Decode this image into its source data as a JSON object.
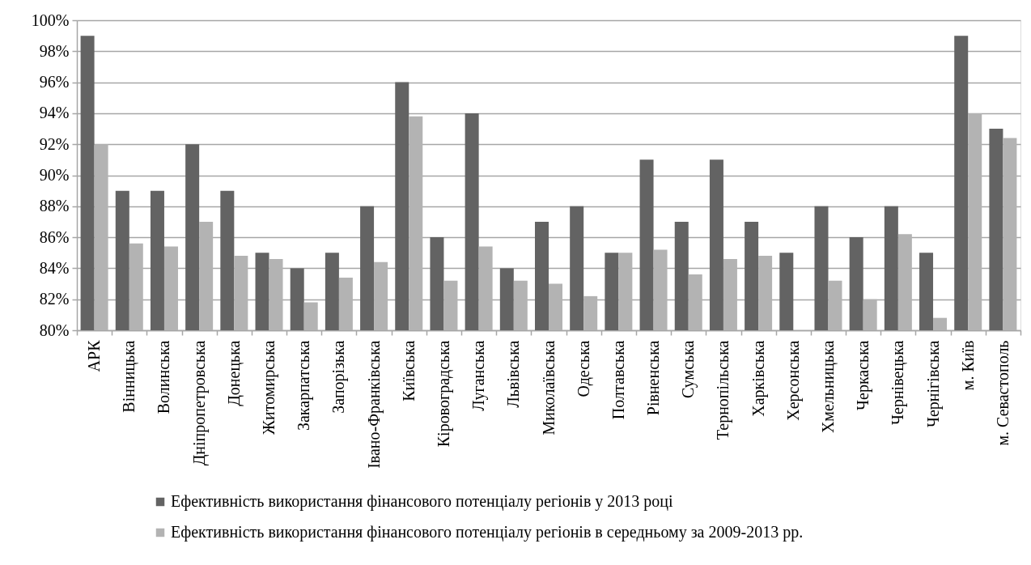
{
  "chart_data": {
    "type": "bar",
    "categories": [
      "АРК",
      "Вінницька",
      "Волинська",
      "Дніпропетровська",
      "Донецька",
      "Житомирська",
      "Закарпатська",
      "Запорізька",
      "Івано-Франківська",
      "Київська",
      "Кіровоградська",
      "Луганська",
      "Львівська",
      "Миколаївська",
      "Одеська",
      "Полтавська",
      "Рівненська",
      "Сумська",
      "Тернопільська",
      "Харківська",
      "Херсонська",
      "Хмельницька",
      "Черкаська",
      "Чернівецька",
      "Чернігівська",
      "м. Київ",
      "м. Севастополь"
    ],
    "series": [
      {
        "name": "Ефективність використання фінансового потенціалу регіонів у 2013 році",
        "color": "#636363",
        "values": [
          99,
          89,
          89,
          92,
          89,
          85,
          84,
          85,
          88,
          96,
          86,
          94,
          84,
          87,
          88,
          85,
          91,
          87,
          91,
          87,
          85,
          88,
          86,
          88,
          85,
          99,
          93
        ]
      },
      {
        "name": "Ефективність використання фінансового потенціалу регіонів в середньому за 2009-2013 рр.",
        "color": "#b3b3b3",
        "values": [
          92.0,
          85.6,
          85.4,
          87.0,
          84.8,
          84.6,
          81.8,
          83.4,
          84.4,
          93.8,
          83.2,
          85.4,
          83.2,
          83.0,
          82.2,
          85.0,
          85.2,
          83.6,
          84.6,
          84.8,
          null,
          83.2,
          82.0,
          86.2,
          80.8,
          94.0,
          92.4
        ]
      }
    ],
    "ylim": [
      80,
      100
    ],
    "yticks": [
      {
        "value": 80,
        "label": "80%"
      },
      {
        "value": 82,
        "label": "82%"
      },
      {
        "value": 84,
        "label": "84%"
      },
      {
        "value": 86,
        "label": "86%"
      },
      {
        "value": 88,
        "label": "88%"
      },
      {
        "value": 90,
        "label": "90%"
      },
      {
        "value": 92,
        "label": "92%"
      },
      {
        "value": 94,
        "label": "94%"
      },
      {
        "value": 96,
        "label": "96%"
      },
      {
        "value": 98,
        "label": "98%"
      },
      {
        "value": 100,
        "label": "100%"
      }
    ],
    "grid": "y",
    "legend": "bottom"
  }
}
